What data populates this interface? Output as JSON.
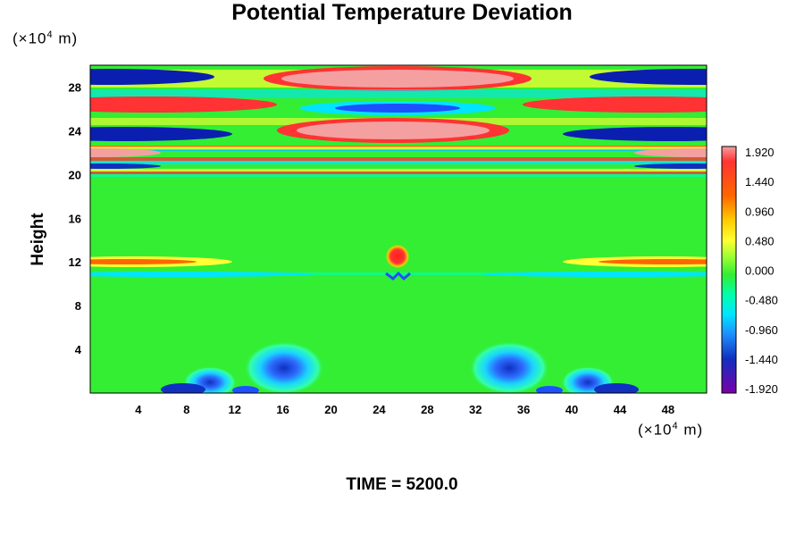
{
  "chart_data": {
    "type": "heatmap",
    "title": "Potential Temperature Deviation",
    "ylabel": "Height",
    "y_unit": "(×10^4 m)",
    "x_unit": "(×10^4 m)",
    "footer": "TIME = 5200.0",
    "x_ticks": [
      "4",
      "8",
      "12",
      "16",
      "20",
      "24",
      "28",
      "32",
      "36",
      "40",
      "44",
      "48"
    ],
    "x_tick_values": [
      4,
      8,
      12,
      16,
      20,
      24,
      28,
      32,
      36,
      40,
      44,
      48
    ],
    "y_ticks": [
      "4",
      "8",
      "12",
      "16",
      "20",
      "24",
      "28"
    ],
    "y_tick_values": [
      4,
      8,
      12,
      16,
      20,
      24,
      28
    ],
    "xlim": [
      0,
      51.2
    ],
    "ylim": [
      0,
      30
    ],
    "colorbar": {
      "ticks": [
        "1.920",
        "1.440",
        "0.960",
        "0.480",
        "0.000",
        "-0.480",
        "-0.960",
        "-1.440",
        "-1.920"
      ],
      "min": -1.92,
      "max": 1.92
    },
    "colors": {
      "background_field": "#33ee33",
      "max": "#f5a0a0",
      "min": "#7a00a8"
    }
  }
}
